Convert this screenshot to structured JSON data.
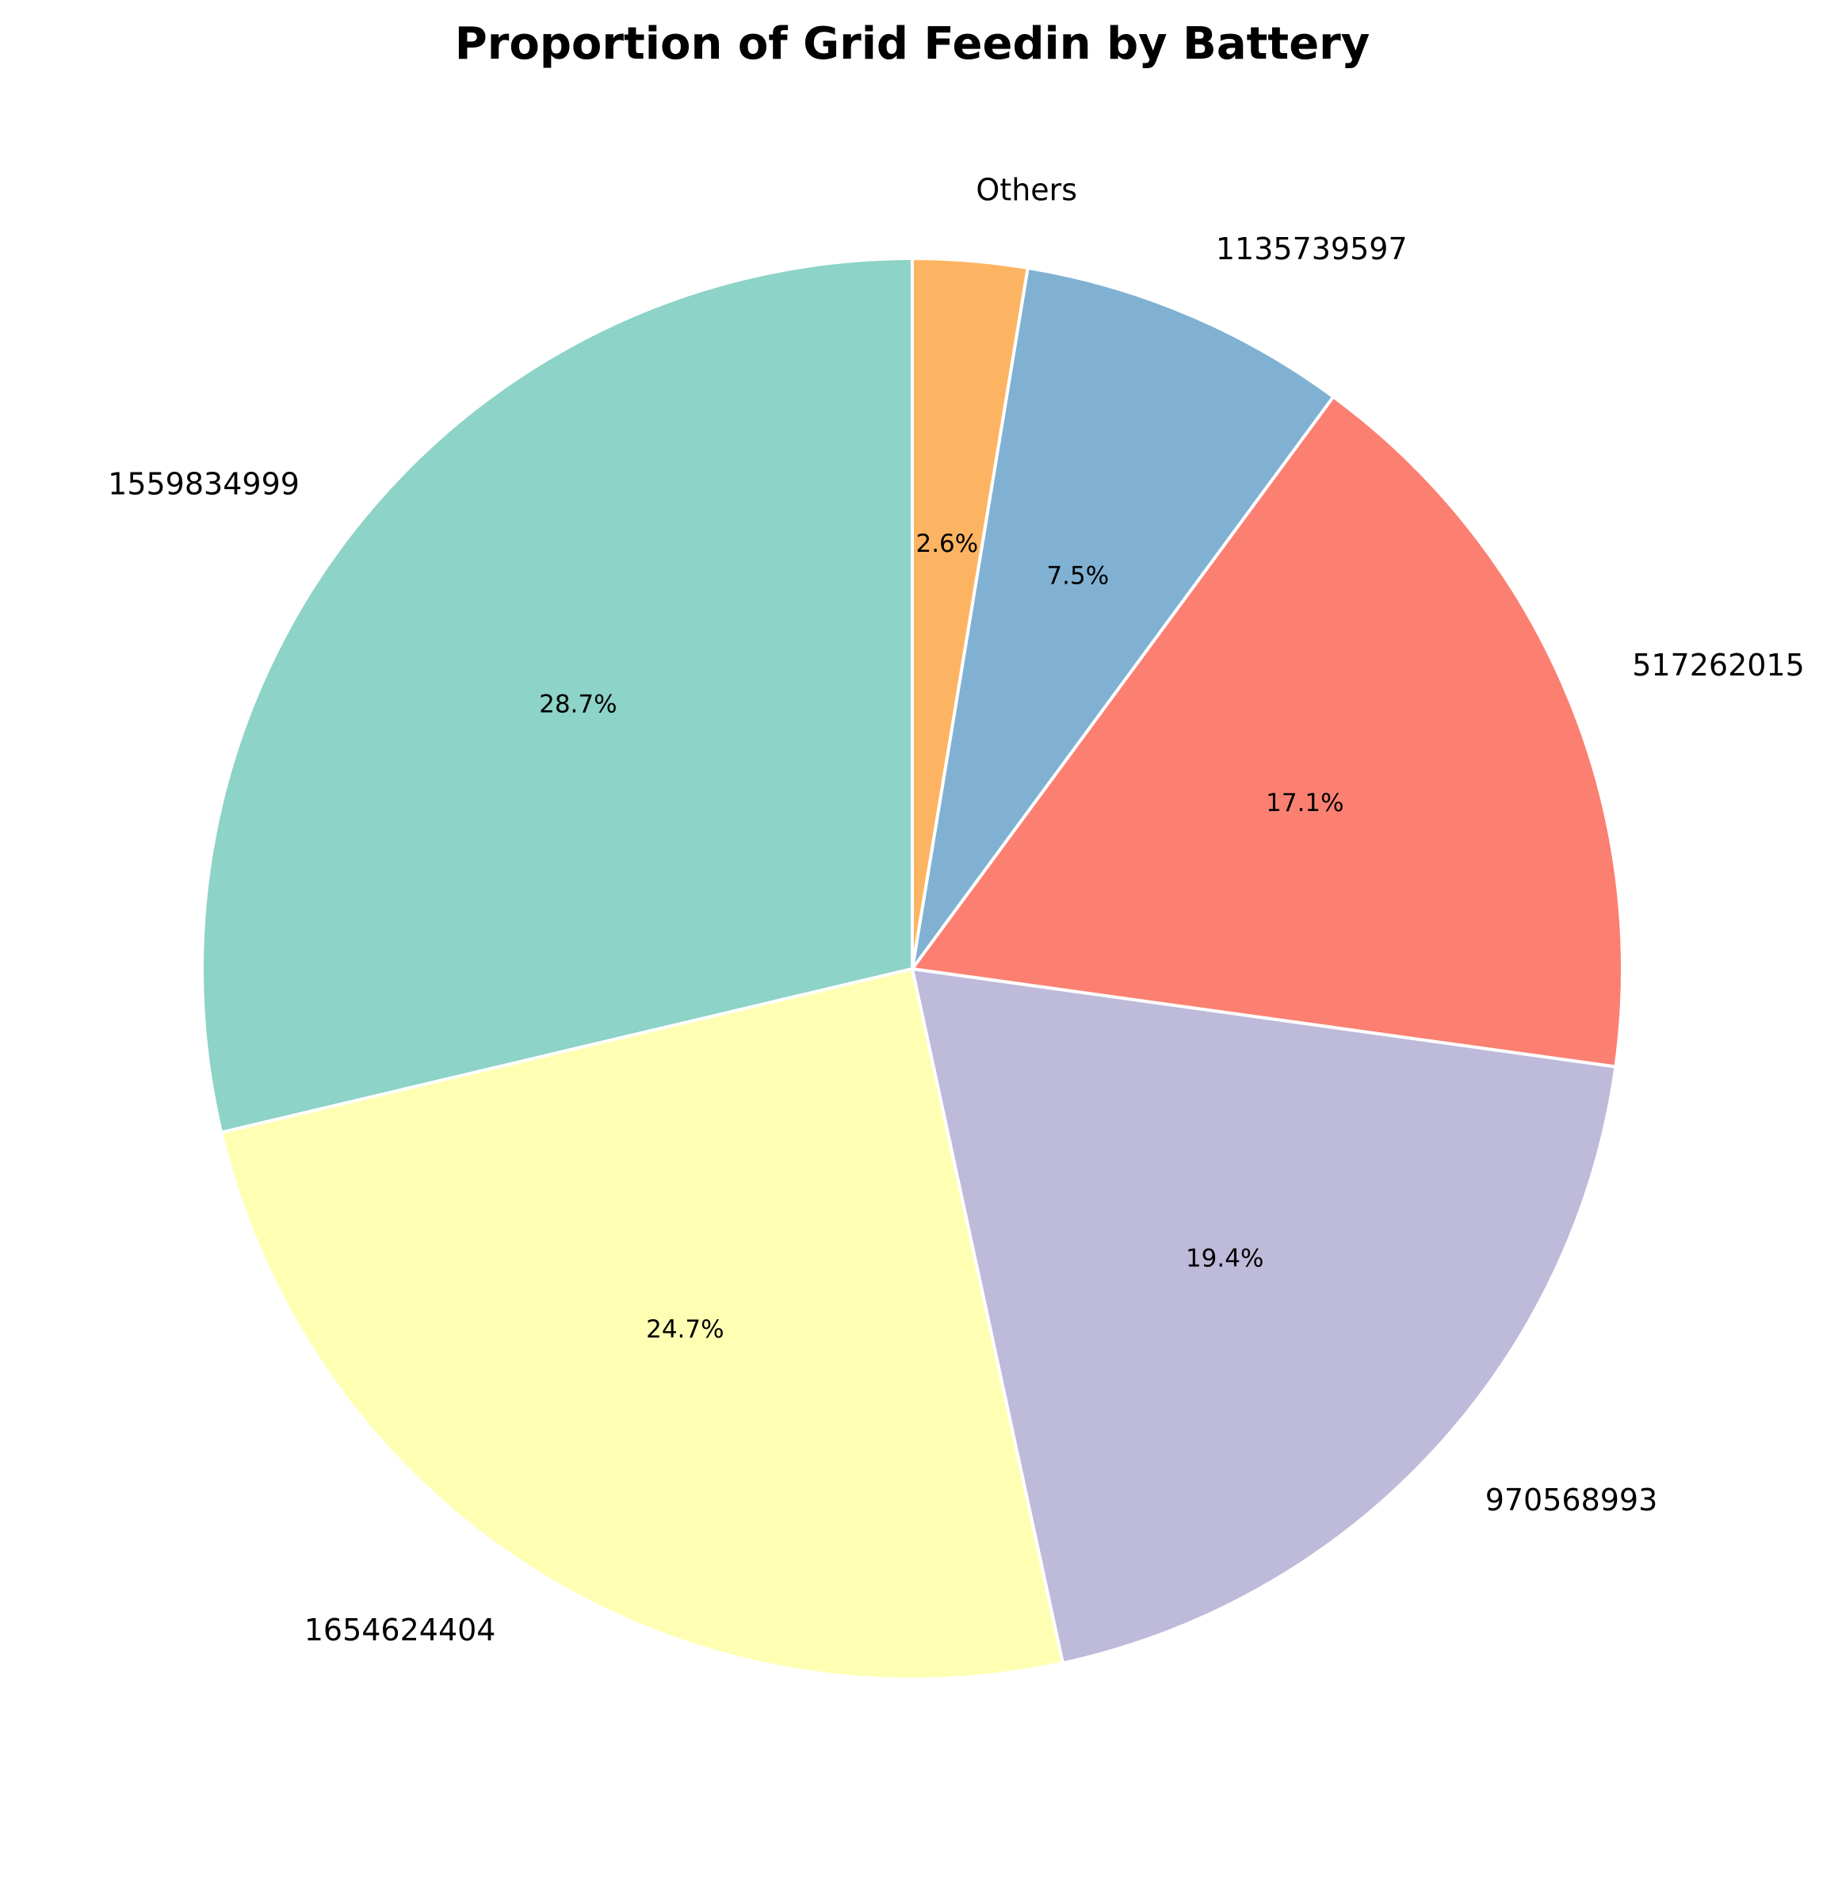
{
  "chart_data": {
    "type": "pie",
    "title": "Proportion of Grid Feedin by Battery",
    "start_angle_deg": 90,
    "direction": "counterclockwise",
    "slices": [
      {
        "label": "1559834999",
        "value": 28.7,
        "pct_label": "28.7%",
        "color": "#8dd3c7"
      },
      {
        "label": "1654624404",
        "value": 24.7,
        "pct_label": "24.7%",
        "color": "#ffffb3"
      },
      {
        "label": "970568993",
        "value": 19.4,
        "pct_label": "19.4%",
        "color": "#bebada"
      },
      {
        "label": "517262015",
        "value": 17.1,
        "pct_label": "17.1%",
        "color": "#fb8072"
      },
      {
        "label": "1135739597",
        "value": 7.5,
        "pct_label": "7.5%",
        "color": "#80b1d3"
      },
      {
        "label": "Others",
        "value": 2.6,
        "pct_label": "2.6%",
        "color": "#fdb462"
      }
    ],
    "edge_color": "#ffffff"
  }
}
